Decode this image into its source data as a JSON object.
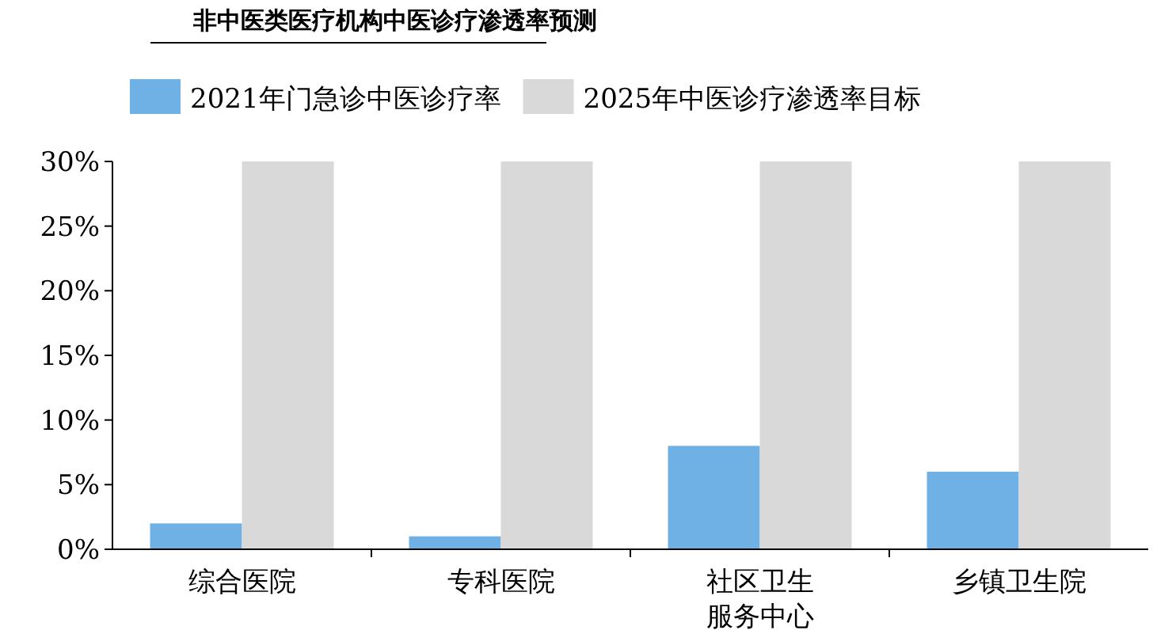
{
  "chart_data": {
    "type": "bar",
    "title": "非中医类医疗机构中医诊疗渗透率预测",
    "categories": [
      "综合医院",
      "专科医院",
      "社区卫生服务中心",
      "乡镇卫生院"
    ],
    "series": [
      {
        "name": "2021年门急诊中医诊疗率",
        "color": "#6fb1e4",
        "values": [
          2,
          1,
          8,
          6
        ]
      },
      {
        "name": "2025年中医诊疗渗透率目标",
        "color": "#d9d9d9",
        "values": [
          30,
          30,
          30,
          30
        ]
      }
    ],
    "ylim": [
      0,
      30
    ],
    "yticks": [
      {
        "value": 0,
        "label": "0%"
      },
      {
        "value": 5,
        "label": "5%"
      },
      {
        "value": 10,
        "label": "10%"
      },
      {
        "value": 15,
        "label": "15%"
      },
      {
        "value": 20,
        "label": "20%"
      },
      {
        "value": 25,
        "label": "25%"
      },
      {
        "value": 30,
        "label": "30%"
      }
    ],
    "grid": false,
    "legend": "top"
  }
}
